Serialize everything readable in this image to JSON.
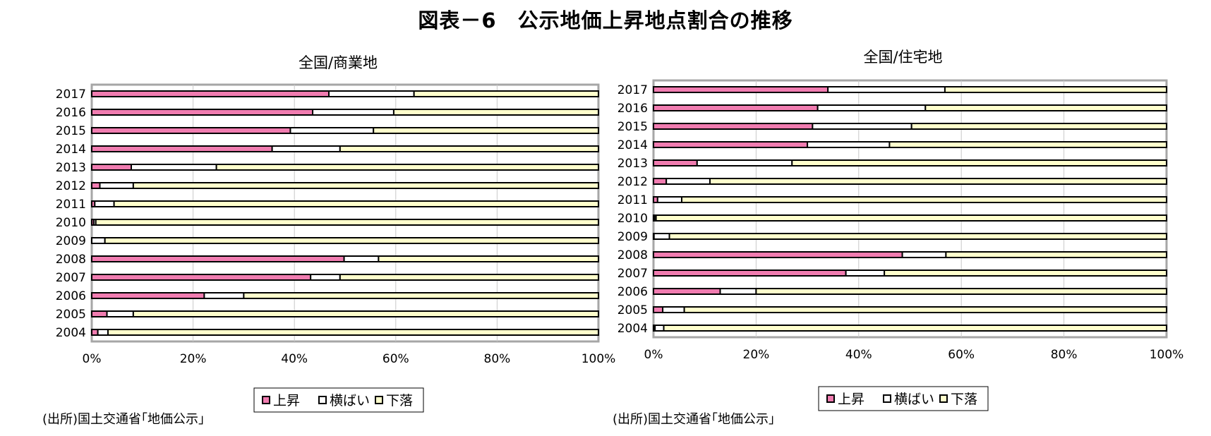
{
  "figure_title": "図表－6　公示地価上昇地点割合の推移",
  "colors": {
    "rise": "#f07cb0",
    "flat": "#ffffff",
    "fall": "#ffffcc",
    "outline": "#000000"
  },
  "chart_data": [
    {
      "type": "bar",
      "orientation": "horizontal",
      "stacked": "percent",
      "title": "全国/商業地",
      "categories": [
        "2017",
        "2016",
        "2015",
        "2014",
        "2013",
        "2012",
        "2011",
        "2010",
        "2009",
        "2008",
        "2007",
        "2006",
        "2005",
        "2004"
      ],
      "series": [
        {
          "name": "上昇",
          "values": [
            46.8,
            43.6,
            39.2,
            35.6,
            7.8,
            1.6,
            0.6,
            0.4,
            0.0,
            49.8,
            43.2,
            22.2,
            3.0,
            1.2
          ]
        },
        {
          "name": "横ばい",
          "values": [
            16.8,
            16.0,
            16.4,
            13.4,
            16.8,
            6.6,
            3.8,
            0.4,
            2.6,
            6.8,
            5.8,
            7.8,
            5.2,
            2.0
          ]
        },
        {
          "name": "下落",
          "values": [
            36.4,
            40.4,
            44.4,
            51.0,
            75.4,
            91.8,
            95.6,
            99.2,
            97.4,
            43.4,
            51.0,
            70.0,
            91.8,
            96.8
          ]
        }
      ],
      "xlim": [
        0,
        100
      ],
      "x_ticks": [
        "0%",
        "20%",
        "40%",
        "60%",
        "80%",
        "100%"
      ],
      "legend": [
        "上昇",
        "横ばい",
        "下落"
      ],
      "legend_position": "bottom",
      "source": "(出所)国土交通省｢地価公示｣"
    },
    {
      "type": "bar",
      "orientation": "horizontal",
      "stacked": "percent",
      "title": "全国/住宅地",
      "categories": [
        "2017",
        "2016",
        "2015",
        "2014",
        "2013",
        "2012",
        "2011",
        "2010",
        "2009",
        "2008",
        "2007",
        "2006",
        "2005",
        "2004"
      ],
      "series": [
        {
          "name": "上昇",
          "values": [
            34.0,
            32.0,
            31.0,
            30.0,
            8.5,
            2.5,
            0.8,
            0.2,
            0.1,
            48.5,
            37.5,
            13.0,
            1.8,
            0.3
          ]
        },
        {
          "name": "横ばい",
          "values": [
            22.8,
            21.0,
            19.3,
            16.0,
            18.5,
            8.5,
            4.7,
            0.3,
            3.0,
            8.5,
            7.5,
            7.0,
            4.2,
            1.7
          ]
        },
        {
          "name": "下落",
          "values": [
            43.2,
            47.0,
            49.7,
            54.0,
            73.0,
            89.0,
            94.5,
            99.5,
            96.9,
            43.0,
            55.0,
            80.0,
            94.0,
            98.0
          ]
        }
      ],
      "xlim": [
        0,
        100
      ],
      "x_ticks": [
        "0%",
        "20%",
        "40%",
        "60%",
        "80%",
        "100%"
      ],
      "legend": [
        "上昇",
        "横ばい",
        "下落"
      ],
      "legend_position": "bottom",
      "source": "(出所)国土交通省｢地価公示｣"
    }
  ]
}
